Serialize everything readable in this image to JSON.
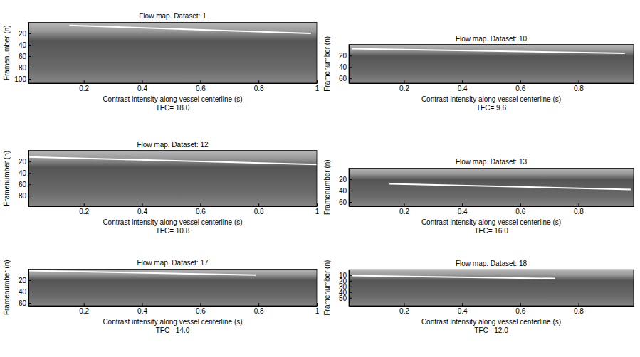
{
  "chart_data": [
    {
      "type": "line",
      "title": "Flow map. Dataset: 1",
      "xlabel": "Contrast intensity along vessel centerline (s)",
      "ylabel": "Framenumber (n)",
      "subtitle": "TFC= 18.0",
      "xlim": [
        0.01,
        1
      ],
      "ylim": [
        0.5,
        107.5
      ],
      "xticks": [
        0.2,
        0.4,
        0.6,
        0.8,
        1
      ],
      "yticks": [
        20,
        40,
        60,
        80,
        100
      ],
      "x": [
        0.15,
        0.98
      ],
      "values": [
        6,
        20
      ],
      "color": "#ffffff"
    },
    {
      "type": "line",
      "title": "Flow map. Dataset: 10",
      "xlabel": "Contrast intensity along vessel centerline (s)",
      "ylabel": "Framenumber (n)",
      "subtitle": "TFC= 9.6",
      "xlim": [
        0.01,
        0.99
      ],
      "ylim": [
        0.5,
        68.5
      ],
      "xticks": [
        0.2,
        0.4,
        0.6,
        0.8
      ],
      "yticks": [
        20,
        40,
        60
      ],
      "x": [
        0.02,
        0.96
      ],
      "values": [
        8,
        16
      ],
      "color": "#ffffff"
    },
    {
      "type": "line",
      "title": "Flow map. Dataset: 12",
      "xlabel": "Contrast intensity along vessel centerline (s)",
      "ylabel": "Framenumber (n)",
      "subtitle": "TFC= 10.8",
      "xlim": [
        0.01,
        1
      ],
      "ylim": [
        0.5,
        98.5
      ],
      "xticks": [
        0.2,
        0.4,
        0.6,
        0.8,
        1
      ],
      "yticks": [
        20,
        40,
        60,
        80
      ],
      "x": [
        0.01,
        1
      ],
      "values": [
        12,
        25
      ],
      "color": "#ffffff"
    },
    {
      "type": "line",
      "title": "Flow map. Dataset: 13",
      "xlabel": "Contrast intensity along vessel centerline (s)",
      "ylabel": "Framenumber (n)",
      "subtitle": "TFC= 16.0",
      "xlim": [
        0.01,
        0.99
      ],
      "ylim": [
        0.5,
        67.5
      ],
      "xticks": [
        0.2,
        0.4,
        0.6,
        0.8
      ],
      "yticks": [
        20,
        40,
        60
      ],
      "x": [
        0.15,
        0.98
      ],
      "values": [
        28,
        38
      ],
      "color": "#ffffff"
    },
    {
      "type": "line",
      "title": "Flow map. Dataset: 17",
      "xlabel": "Contrast intensity along vessel centerline (s)",
      "ylabel": "Framenumber (n)",
      "subtitle": "TFC= 14.0",
      "xlim": [
        0.01,
        1
      ],
      "ylim": [
        0.5,
        65
      ],
      "xticks": [
        0.2,
        0.4,
        0.6,
        0.8,
        1
      ],
      "yticks": [
        20,
        40,
        60
      ],
      "x": [
        0.01,
        0.79
      ],
      "values": [
        3,
        11
      ],
      "color": "#ffffff"
    },
    {
      "type": "line",
      "title": "Flow map. Dataset: 18",
      "xlabel": "Contrast intensity along vessel centerline (s)",
      "ylabel": "Framenumber (n)",
      "subtitle": "TFC= 12.0",
      "xlim": [
        0.01,
        0.99
      ],
      "ylim": [
        0.5,
        64
      ],
      "xticks": [
        0.2,
        0.4,
        0.6,
        0.8
      ],
      "yticks": [
        10,
        20,
        30,
        40,
        50
      ],
      "x": [
        0.02,
        0.72
      ],
      "values": [
        11,
        16
      ],
      "color": "#ffffff"
    }
  ]
}
